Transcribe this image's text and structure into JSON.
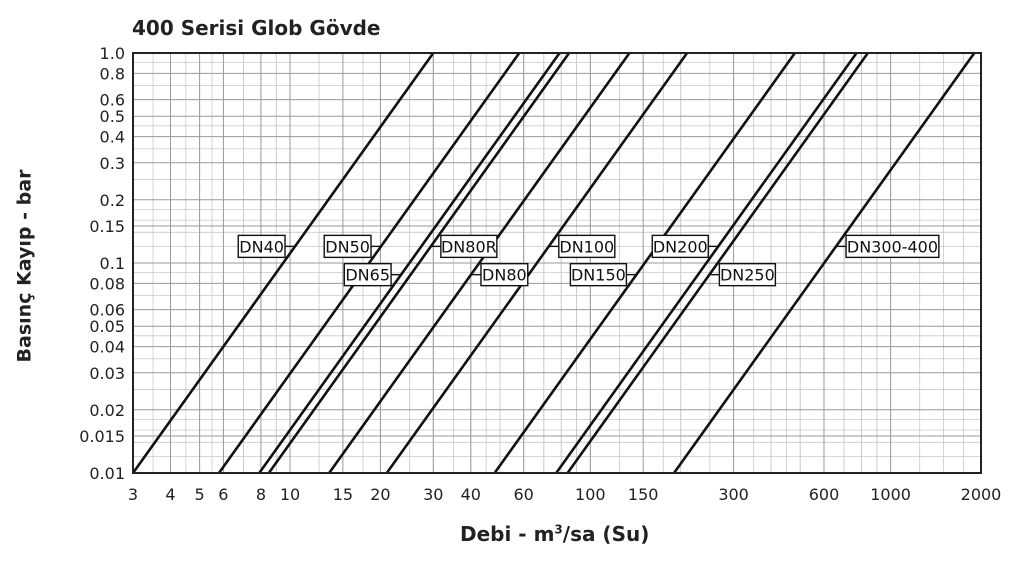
{
  "chart_data": {
    "type": "line",
    "title": "400 Serisi Glob Gövde",
    "xlabel_main": "Debi - m",
    "xlabel_sup": "3",
    "xlabel_tail": "/sa (Su)",
    "ylabel": "Basınç Kayıp - bar",
    "x_scale": "log",
    "y_scale": "log",
    "xlim": [
      3,
      2000
    ],
    "ylim": [
      0.01,
      1.0
    ],
    "grid": true,
    "x_ticks": [
      3,
      4,
      5,
      6,
      8,
      10,
      15,
      20,
      30,
      40,
      60,
      100,
      150,
      300,
      600,
      1000,
      2000
    ],
    "x_tick_labels": [
      "3",
      "4",
      "5",
      "6",
      "8",
      "10",
      "15",
      "20",
      "30",
      "40",
      "60",
      "100",
      "150",
      "300",
      "600",
      "1000",
      "2000"
    ],
    "y_ticks": [
      0.01,
      0.015,
      0.02,
      0.03,
      0.04,
      0.05,
      0.06,
      0.08,
      0.1,
      0.15,
      0.2,
      0.3,
      0.4,
      0.5,
      0.6,
      0.8,
      1.0
    ],
    "y_tick_labels": [
      "0.01",
      "0.015",
      "0.02",
      "0.03",
      "0.04",
      "0.05",
      "0.06",
      "0.08",
      "0.1",
      "0.15",
      "0.2",
      "0.3",
      "0.4",
      "0.5",
      "0.6",
      "0.8",
      "1.0"
    ],
    "series": [
      {
        "name": "DN40",
        "x": [
          3.0,
          30.0
        ],
        "y": [
          0.01,
          1.0
        ],
        "label_at": 0.12,
        "label_side": "left"
      },
      {
        "name": "DN50",
        "x": [
          5.8,
          58.0
        ],
        "y": [
          0.01,
          1.0
        ],
        "label_at": 0.12,
        "label_side": "left"
      },
      {
        "name": "DN65",
        "x": [
          7.9,
          79.0
        ],
        "y": [
          0.01,
          1.0
        ],
        "label_at": 0.088,
        "label_side": "left"
      },
      {
        "name": "DN80R",
        "x": [
          8.5,
          85.0
        ],
        "y": [
          0.01,
          1.0
        ],
        "label_at": 0.12,
        "label_side": "right"
      },
      {
        "name": "DN80",
        "x": [
          13.5,
          135.0
        ],
        "y": [
          0.01,
          1.0
        ],
        "label_at": 0.088,
        "label_side": "right"
      },
      {
        "name": "DN100",
        "x": [
          21.0,
          210.0
        ],
        "y": [
          0.01,
          1.0
        ],
        "label_at": 0.12,
        "label_side": "right"
      },
      {
        "name": "DN150",
        "x": [
          48.0,
          480.0
        ],
        "y": [
          0.01,
          1.0
        ],
        "label_at": 0.088,
        "label_side": "left"
      },
      {
        "name": "DN200",
        "x": [
          77.0,
          770.0
        ],
        "y": [
          0.01,
          1.0
        ],
        "label_at": 0.12,
        "label_side": "left"
      },
      {
        "name": "DN250",
        "x": [
          84.0,
          840.0
        ],
        "y": [
          0.01,
          1.0
        ],
        "label_at": 0.088,
        "label_side": "right"
      },
      {
        "name": "DN300-400",
        "x": [
          190.0,
          1900.0
        ],
        "y": [
          0.01,
          1.0
        ],
        "label_at": 0.12,
        "label_side": "right"
      }
    ]
  }
}
